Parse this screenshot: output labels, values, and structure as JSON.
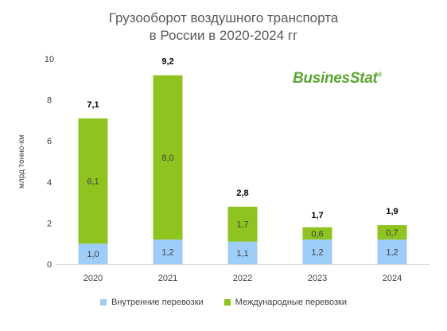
{
  "title_line1": "Грузооборот воздушного транспорта",
  "title_line2": "в России в  2020-2024 гг",
  "logo_text": "BusinesStat",
  "logo_mark": "®",
  "colors": {
    "domestic": "#9ecdf7",
    "international": "#8fc31f",
    "axis_text": "#404040"
  },
  "chart_data": {
    "type": "bar",
    "stacked": true,
    "categories": [
      "2020",
      "2021",
      "2022",
      "2023",
      "2024"
    ],
    "series": [
      {
        "name": "Внутренние перевозки",
        "values": [
          1.0,
          1.2,
          1.1,
          1.2,
          1.2
        ],
        "labels": [
          "1,0",
          "1,2",
          "1,1",
          "1,2",
          "1,2"
        ]
      },
      {
        "name": "Международные перевозки",
        "values": [
          6.1,
          8.0,
          1.7,
          0.6,
          0.7
        ],
        "labels": [
          "6,1",
          "8,0",
          "1,7",
          "0,6",
          "0,7"
        ]
      }
    ],
    "totals": [
      7.1,
      9.2,
      2.8,
      1.7,
      1.9
    ],
    "total_labels": [
      "7,1",
      "9,2",
      "2,8",
      "1,7",
      "1,9"
    ],
    "ylabel": "млрд тонно-км",
    "ylim": [
      0,
      10
    ],
    "yticks": [
      0,
      2,
      4,
      6,
      8,
      10
    ],
    "grid": false,
    "legend_position": "bottom"
  }
}
